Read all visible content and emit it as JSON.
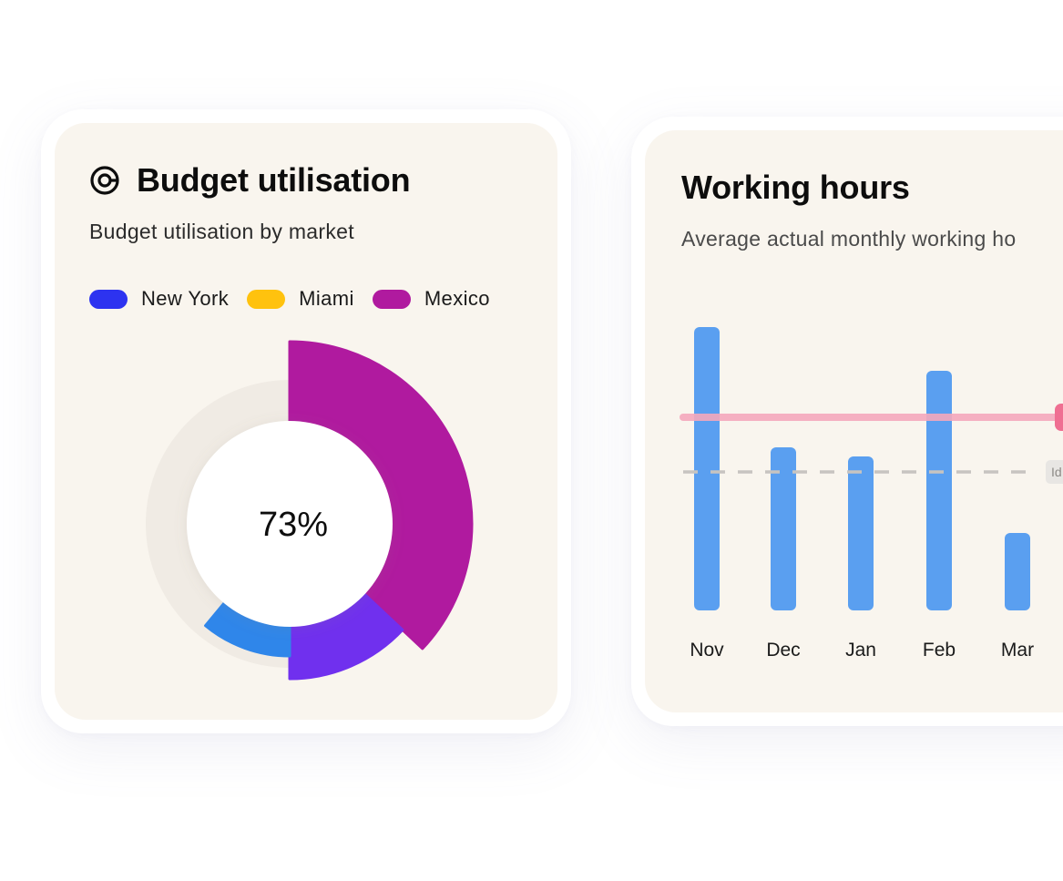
{
  "budget_card": {
    "title": "Budget utilisation",
    "subtitle": "Budget utilisation by market",
    "icon": "donut-chart-icon",
    "center_value": "73%",
    "legend": [
      {
        "label": "New York",
        "color": "#2d33f0"
      },
      {
        "label": "Miami",
        "color": "#ffc20e"
      },
      {
        "label": "Mexico",
        "color": "#b01a9f"
      }
    ]
  },
  "hours_card": {
    "title": "Working hours",
    "subtitle": "Average actual monthly working  ho"
  },
  "chart_data": [
    {
      "type": "pie",
      "variant": "donut",
      "center_label": "73%",
      "series": [
        {
          "name": "Mexico",
          "value": 37,
          "color": "#b01a9f"
        },
        {
          "name": "Segment",
          "value": 13,
          "color": "#7030ee"
        },
        {
          "name": "Segment",
          "value": 11,
          "color": "#2f86ea"
        }
      ],
      "track_color": "#f0ebe4",
      "start_angle": "top",
      "direction": "clockwise"
    },
    {
      "type": "bar",
      "categories": [
        "Nov",
        "Dec",
        "Jan",
        "Feb",
        "Mar"
      ],
      "values": [
        311,
        179,
        169,
        263,
        85
      ],
      "bar_color": "#5a9ff0",
      "reference_lines": [
        {
          "value": 212,
          "style": "solid",
          "color": "#f5a8bd"
        },
        {
          "value": 152,
          "style": "dashed",
          "color": "#c7c4c0",
          "label": "Id"
        }
      ],
      "grid": false
    }
  ]
}
